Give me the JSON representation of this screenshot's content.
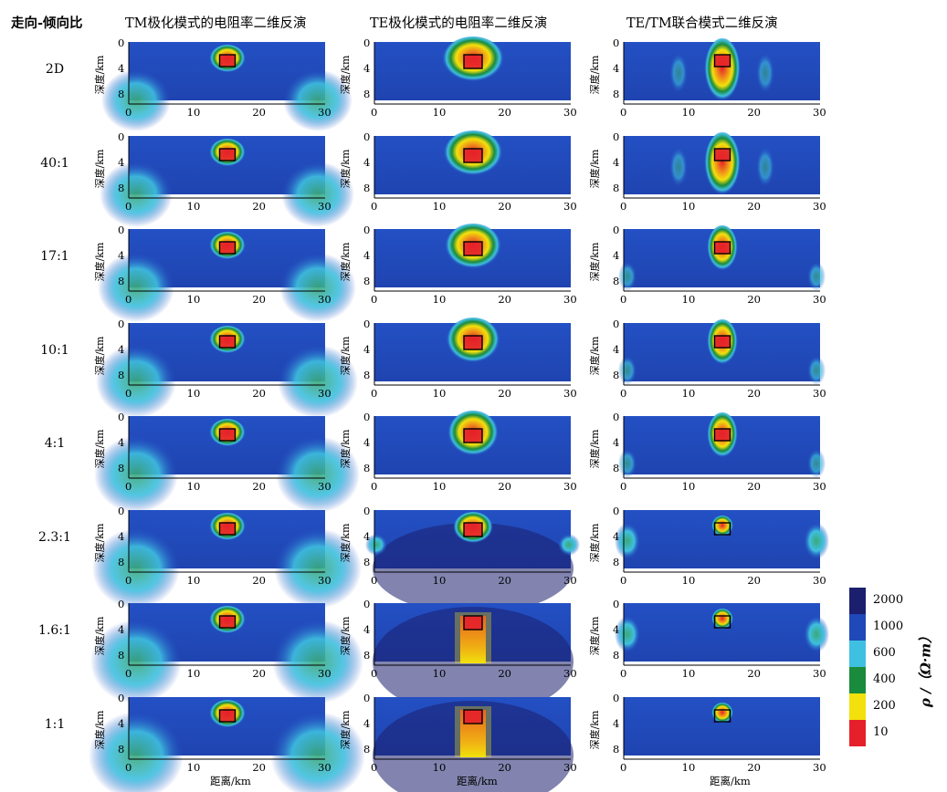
{
  "row_header": "走向-倾向比",
  "column_titles": [
    "TM极化模式的电阻率二维反演",
    "TE极化模式的电阻率二维反演",
    "TE/TM联合模式二维反演"
  ],
  "rows": [
    "2D",
    "40:1",
    "17:1",
    "10:1",
    "4:1",
    "2.3:1",
    "1.6:1",
    "1:1"
  ],
  "y_axis_label": "深度/km",
  "x_axis_label": "距离/km",
  "x_ticks": [
    "0",
    "10",
    "20",
    "30"
  ],
  "y_ticks": [
    "0",
    "4",
    "8"
  ],
  "colorbar": {
    "title": "ρ /（Ω·m）",
    "labels": [
      "2000",
      "1000",
      "600",
      "400",
      "200",
      "10"
    ],
    "colors": [
      "#1b1f6e",
      "#1f48b8",
      "#3fc0e0",
      "#1a8a3c",
      "#f2e10c",
      "#e5202a"
    ]
  }
}
